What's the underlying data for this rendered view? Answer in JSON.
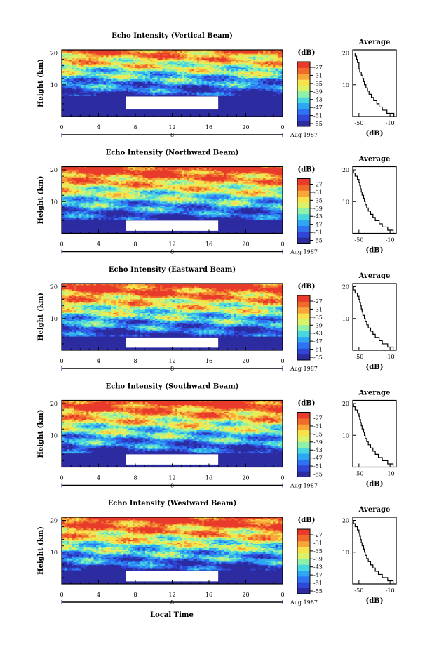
{
  "colorbar": {
    "unit_label": "(dB)",
    "ticks": [
      "-27",
      "-31",
      "-35",
      "-39",
      "-43",
      "-47",
      "-51",
      "-55"
    ],
    "colors": [
      "#2d2ba0",
      "#2f46d6",
      "#2f73f0",
      "#2fa6f2",
      "#49d6df",
      "#8ef0a9",
      "#d8f36a",
      "#f7e24b",
      "#f7a63a",
      "#ef6b2c",
      "#e83b2b"
    ]
  },
  "shared": {
    "xticks": [
      "0",
      "4",
      "8",
      "12",
      "16",
      "20",
      "0"
    ],
    "date_text": "8",
    "month_year": "Aug 1987",
    "xlabel": "Local Time",
    "ylabel": "Height (km)",
    "yticks": [
      "20",
      "10"
    ],
    "avg_title": "Average",
    "avg_xlabel": "(dB)",
    "avg_yticks": [
      "20",
      "10"
    ],
    "gap_color": "#ffffff"
  },
  "chart_data": [
    {
      "type": "heatmap",
      "title": "Echo Intensity (Vertical Beam)",
      "x_range": [
        0,
        24
      ],
      "y_range": [
        0,
        21
      ],
      "gap_hours": [
        7,
        17
      ],
      "gap_height_km": [
        2.2,
        6.3
      ],
      "average_profile": {
        "type": "line",
        "xticks": [
          "-50",
          "-10"
        ],
        "xlim": [
          -58,
          -2
        ],
        "ylim": [
          0,
          21
        ],
        "height_km": [
          1,
          2,
          3,
          4,
          5,
          6,
          7,
          8,
          9,
          10,
          11,
          12,
          13,
          14,
          15,
          16,
          17,
          18,
          19,
          20
        ],
        "db": [
          -5,
          -14,
          -20,
          -24,
          -27,
          -31,
          -34,
          -37,
          -39,
          -41,
          -43,
          -44,
          -45,
          -47,
          -49,
          -50,
          -50,
          -52,
          -53,
          -55
        ]
      }
    },
    {
      "type": "heatmap",
      "title": "Echo Intensity (Northward Beam)",
      "x_range": [
        0,
        24
      ],
      "y_range": [
        0,
        21
      ],
      "gap_hours": [
        7,
        17
      ],
      "gap_height_km": [
        0.8,
        4.0
      ],
      "average_profile": {
        "type": "line",
        "xticks": [
          "-50",
          "-10"
        ],
        "xlim": [
          -58,
          -2
        ],
        "ylim": [
          0,
          21
        ],
        "height_km": [
          1,
          2,
          3,
          4,
          5,
          6,
          7,
          8,
          9,
          10,
          11,
          12,
          13,
          14,
          15,
          16,
          17,
          18,
          19,
          20
        ],
        "db": [
          -6,
          -13,
          -20,
          -24,
          -29,
          -32,
          -35,
          -38,
          -40,
          -42,
          -43,
          -44,
          -46,
          -47,
          -48,
          -49,
          -50,
          -52,
          -55,
          -57
        ]
      }
    },
    {
      "type": "heatmap",
      "title": "Echo Intensity (Eastward Beam)",
      "x_range": [
        0,
        24
      ],
      "y_range": [
        0,
        21
      ],
      "gap_hours": [
        7,
        17
      ],
      "gap_height_km": [
        0.8,
        4.0
      ],
      "average_profile": {
        "type": "line",
        "xticks": [
          "-50",
          "-10"
        ],
        "xlim": [
          -58,
          -2
        ],
        "ylim": [
          0,
          21
        ],
        "height_km": [
          1,
          2,
          3,
          4,
          5,
          6,
          7,
          8,
          9,
          10,
          11,
          12,
          13,
          14,
          15,
          16,
          17,
          18,
          19,
          20
        ],
        "db": [
          -6,
          -13,
          -20,
          -24,
          -29,
          -32,
          -35,
          -38,
          -40,
          -42,
          -43,
          -45,
          -46,
          -47,
          -48,
          -49,
          -50,
          -52,
          -55,
          -57
        ]
      }
    },
    {
      "type": "heatmap",
      "title": "Echo Intensity (Southward Beam)",
      "x_range": [
        0,
        24
      ],
      "y_range": [
        0,
        21
      ],
      "gap_hours": [
        7,
        17
      ],
      "gap_height_km": [
        0.8,
        4.0
      ],
      "average_profile": {
        "type": "line",
        "xticks": [
          "-50",
          "-10"
        ],
        "xlim": [
          -58,
          -2
        ],
        "ylim": [
          0,
          21
        ],
        "height_km": [
          1,
          2,
          3,
          4,
          5,
          6,
          7,
          8,
          9,
          10,
          11,
          12,
          13,
          14,
          15,
          16,
          17,
          18,
          19,
          20
        ],
        "db": [
          -6,
          -13,
          -20,
          -25,
          -29,
          -32,
          -35,
          -38,
          -40,
          -42,
          -43,
          -44,
          -46,
          -47,
          -48,
          -49,
          -50,
          -52,
          -55,
          -57
        ]
      }
    },
    {
      "type": "heatmap",
      "title": "Echo Intensity (Westward Beam)",
      "x_range": [
        0,
        24
      ],
      "y_range": [
        0,
        21
      ],
      "gap_hours": [
        7,
        17
      ],
      "gap_height_km": [
        0.8,
        4.0
      ],
      "average_profile": {
        "type": "line",
        "xticks": [
          "-50",
          "-10"
        ],
        "xlim": [
          -58,
          -2
        ],
        "ylim": [
          0,
          21
        ],
        "height_km": [
          1,
          2,
          3,
          4,
          5,
          6,
          7,
          8,
          9,
          10,
          11,
          12,
          13,
          14,
          15,
          16,
          17,
          18,
          19,
          20
        ],
        "db": [
          -6,
          -13,
          -20,
          -25,
          -29,
          -32,
          -35,
          -38,
          -40,
          -42,
          -43,
          -44,
          -46,
          -47,
          -48,
          -49,
          -50,
          -52,
          -55,
          -57
        ]
      }
    }
  ]
}
